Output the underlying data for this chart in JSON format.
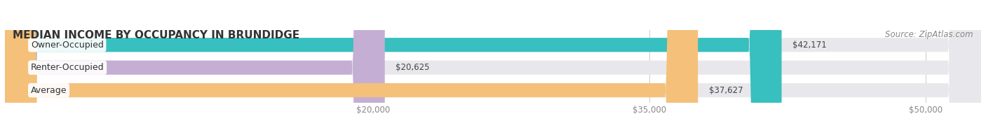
{
  "title": "MEDIAN INCOME BY OCCUPANCY IN BRUNDIDGE",
  "source": "Source: ZipAtlas.com",
  "categories": [
    "Owner-Occupied",
    "Renter-Occupied",
    "Average"
  ],
  "values": [
    42171,
    20625,
    37627
  ],
  "labels": [
    "$42,171",
    "$20,625",
    "$37,627"
  ],
  "bar_colors": [
    "#38bfbf",
    "#c4aed4",
    "#f5c07a"
  ],
  "bg_color": "#e8e8ec",
  "x_ticks": [
    20000,
    35000,
    50000
  ],
  "x_tick_labels": [
    "$20,000",
    "$35,000",
    "$50,000"
  ],
  "x_min": 0,
  "x_max": 53000,
  "title_fontsize": 11,
  "source_fontsize": 8.5,
  "bar_label_fontsize": 8.5,
  "cat_label_fontsize": 9,
  "tick_fontsize": 8.5,
  "figsize": [
    14.06,
    1.96
  ],
  "dpi": 100
}
